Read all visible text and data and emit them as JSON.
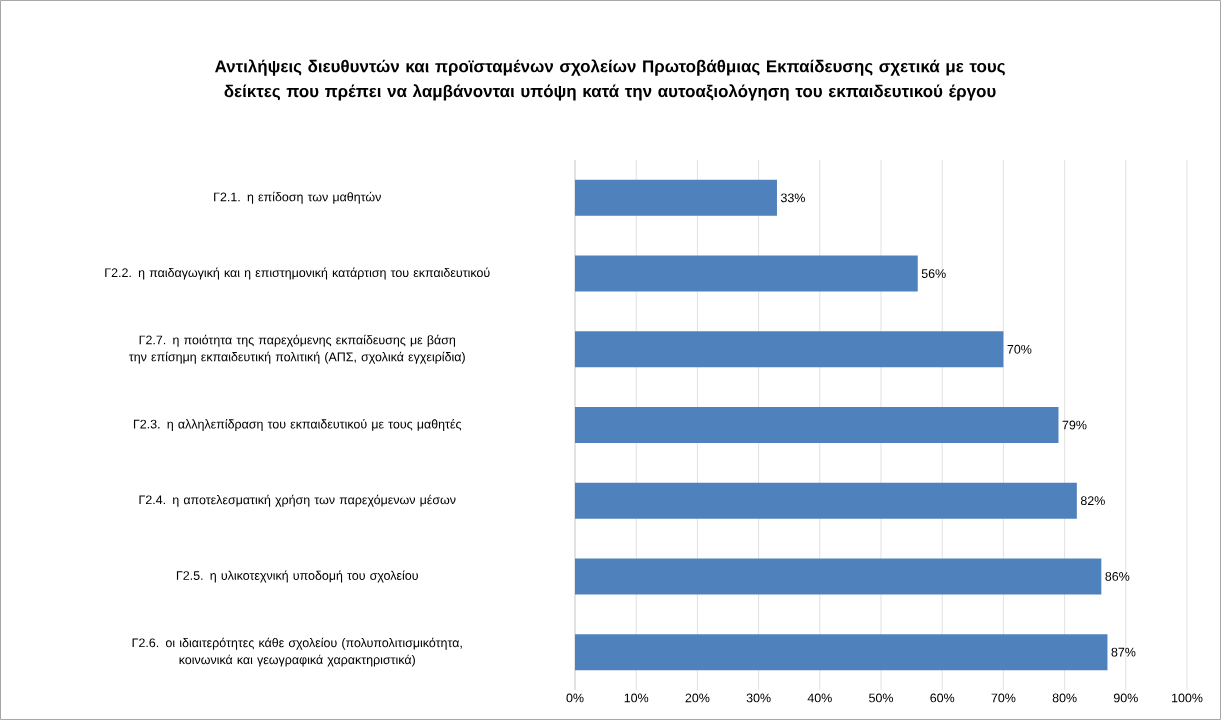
{
  "chart_data": {
    "type": "bar",
    "orientation": "horizontal",
    "title": "Αντιλήψεις διευθυντών και προϊσταμένων σχολείων Πρωτοβάθμιας Εκπαίδευσης σχετικά με τους δείκτες που πρέπει να λαμβάνονται υπόψη κατά την αυτοαξιολόγηση του εκπαιδευτικού έργου",
    "categories": [
      "Γ2.1. η επίδοση των μαθητών",
      "Γ2.2. η παιδαγωγική και η επιστημονική κατάρτιση του εκπαιδευτικού",
      "Γ2.7. η ποιότητα της παρεχόμενης εκπαίδευσης με βάση την επίσημη εκπαιδευτική πολιτική (ΑΠΣ, σχολικά εγχειρίδια)",
      "Γ2.3. η αλληλεπίδραση του εκπαιδευτικού με τους μαθητές",
      "Γ2.4. η αποτελεσματική χρήση των παρεχόμενων μέσων",
      "Γ2.5. η υλικοτεχνική υποδομή του σχολείου",
      "Γ2.6. οι ιδιαιτερότητες κάθε σχολείου (πολυπολιτισμικότητα, κοινωνικά και γεωγραφικά χαρακτηριστικά)"
    ],
    "values": [
      33,
      56,
      70,
      79,
      82,
      86,
      87
    ],
    "value_labels": [
      "33%",
      "56%",
      "70%",
      "79%",
      "82%",
      "86%",
      "87%"
    ],
    "color": "#4f81bd",
    "xlim": [
      0,
      100
    ],
    "xticks": [
      {
        "value": 0,
        "label": "0%"
      },
      {
        "value": 10,
        "label": "10%"
      },
      {
        "value": 20,
        "label": "20%"
      },
      {
        "value": 30,
        "label": "30%"
      },
      {
        "value": 40,
        "label": "40%"
      },
      {
        "value": 50,
        "label": "50%"
      },
      {
        "value": 60,
        "label": "60%"
      },
      {
        "value": 70,
        "label": "70%"
      },
      {
        "value": 80,
        "label": "80%"
      },
      {
        "value": 90,
        "label": "90%"
      },
      {
        "value": 100,
        "label": "100%"
      }
    ],
    "grid": "x"
  }
}
